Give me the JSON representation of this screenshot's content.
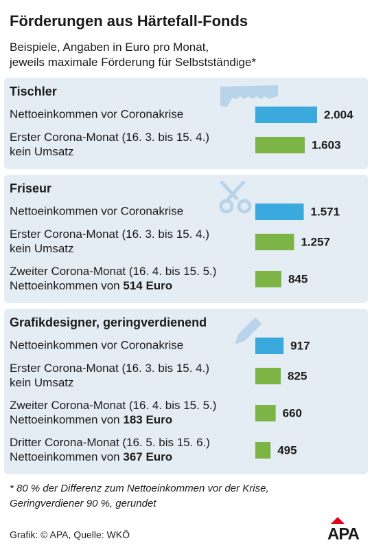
{
  "title": "Förderungen aus Härtefall-Fonds",
  "subtitle": "Beispiele, Angaben in Euro pro Monat,\njeweils maximale Förderung für Selbstständige*",
  "footnote": "*  80 % der Differenz zum Nettoeinkommen vor der Krise,\nGeringverdiener 90 %, gerundet",
  "source": "Grafik: © APA, Quelle: WKÖ",
  "logo": "APA",
  "chart_data": [
    {
      "type": "bar",
      "title": "Tischler",
      "categories": [
        "Nettoeinkommen vor Coronakrise",
        "Erster Corona-Monat (16. 3. bis 15. 4.)\nkein Umsatz"
      ],
      "values": [
        2004,
        1603
      ],
      "value_labels": [
        "2.004",
        "1.603"
      ],
      "colors": [
        "#3aa9dd",
        "#7cb445"
      ]
    },
    {
      "type": "bar",
      "title": "Friseur",
      "categories": [
        "Nettoeinkommen vor Coronakrise",
        "Erster Corona-Monat (16. 3. bis 15. 4.)\nkein Umsatz",
        "Zweiter Corona-Monat (16. 4. bis 15. 5.)\nNettoeinkommen von 514 Euro"
      ],
      "values": [
        1571,
        1257,
        845
      ],
      "value_labels": [
        "1.571",
        "1.257",
        "845"
      ],
      "colors": [
        "#3aa9dd",
        "#7cb445",
        "#7cb445"
      ]
    },
    {
      "type": "bar",
      "title": "Grafikdesigner, geringverdienend",
      "categories": [
        "Nettoeinkommen vor Coronakrise",
        "Erster Corona-Monat (16. 3. bis 15. 4.)\nkein Umsatz",
        "Zweiter Corona-Monat (16. 4. bis 15. 5.)\nNettoeinkommen von 183 Euro",
        "Dritter Corona-Monat (16. 5. bis 15. 6.)\nNettoeinkommen von 367 Euro"
      ],
      "values": [
        917,
        825,
        660,
        495
      ],
      "value_labels": [
        "917",
        "825",
        "660",
        "495"
      ],
      "colors": [
        "#3aa9dd",
        "#7cb445",
        "#7cb445",
        "#7cb445"
      ]
    }
  ]
}
